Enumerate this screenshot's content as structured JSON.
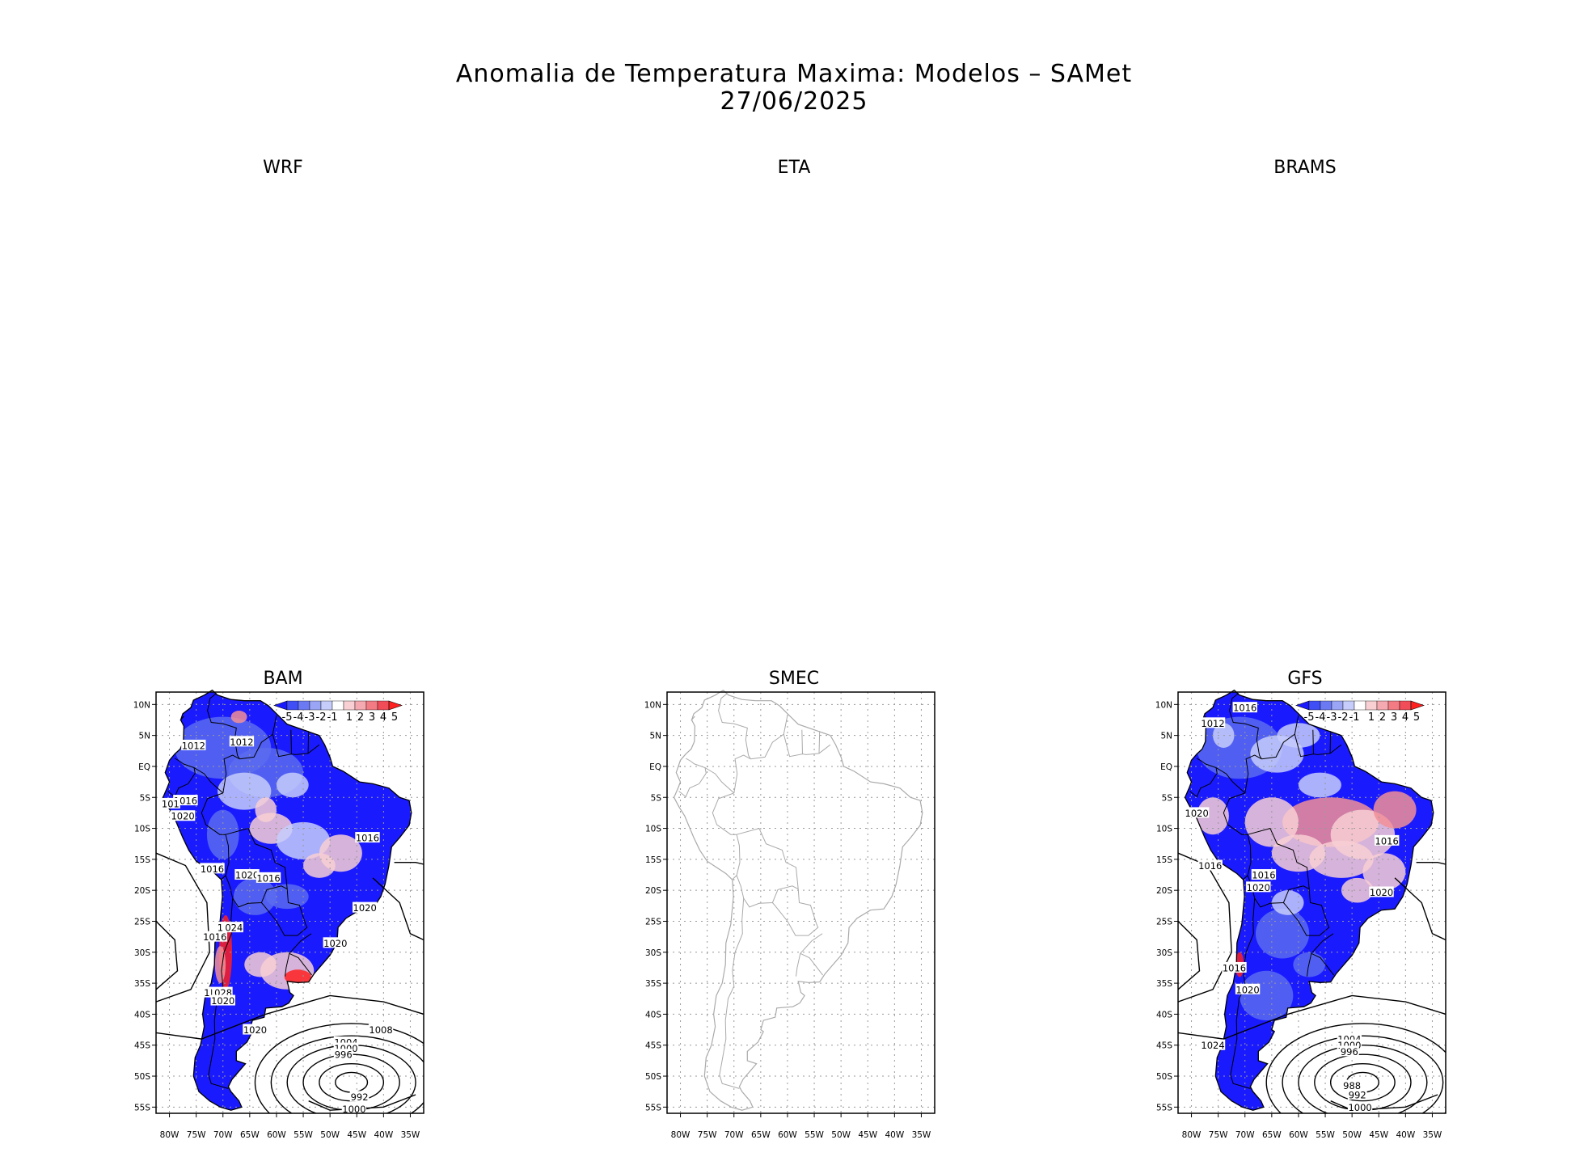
{
  "header": {
    "title": "Anomalia de Temperatura Maxima: Modelos – SAMet",
    "date": "27/06/2025"
  },
  "panels": [
    {
      "name": "WRF",
      "has_map": false
    },
    {
      "name": "ETA",
      "has_map": false
    },
    {
      "name": "BRAMS",
      "has_map": false
    },
    {
      "name": "BAM",
      "has_map": true
    },
    {
      "name": "SMEC",
      "has_map": true
    },
    {
      "name": "GFS",
      "has_map": true
    }
  ],
  "colors": {
    "land_outline": "#000000",
    "smec_outline": "#aaaaaa",
    "cold_strong": "#1a1aff",
    "cold_mid": "#5b6cf0",
    "cold_weak": "#c6cdfa",
    "warm_weak": "#f8cfd3",
    "warm_mid": "#f38f96",
    "warm_strong": "#ff2020"
  },
  "chart_data": [
    {
      "type": "heatmap",
      "panel": "BAM",
      "x_ticks": [
        "80W",
        "75W",
        "70W",
        "65W",
        "60W",
        "55W",
        "50W",
        "45W",
        "40W",
        "35W"
      ],
      "y_ticks": [
        "10N",
        "5N",
        "EQ",
        "5S",
        "10S",
        "15S",
        "20S",
        "25S",
        "30S",
        "35S",
        "40S",
        "45S",
        "50S",
        "55S"
      ],
      "xlim": [
        -82.5,
        -32.5
      ],
      "ylim": [
        -56,
        12
      ],
      "colorbar": {
        "labels": [
          "-5",
          "-4",
          "-3",
          "-2",
          "-1",
          "1",
          "2",
          "3",
          "4",
          "5"
        ]
      },
      "contour_labels": [
        {
          "text": "1012",
          "lon": -75.5,
          "lat": 3.4
        },
        {
          "text": "1012",
          "lon": -66.5,
          "lat": 4.0
        },
        {
          "text": "1016",
          "lon": -77.0,
          "lat": -5.5
        },
        {
          "text": "101",
          "lon": -79.8,
          "lat": -6.0
        },
        {
          "text": "1020",
          "lon": -77.5,
          "lat": -8.0
        },
        {
          "text": "1016",
          "lon": -43.0,
          "lat": -11.5
        },
        {
          "text": "1016",
          "lon": -72.0,
          "lat": -16.5
        },
        {
          "text": "1020",
          "lon": -65.5,
          "lat": -17.5
        },
        {
          "text": "1016",
          "lon": -61.5,
          "lat": -18.0
        },
        {
          "text": "1020",
          "lon": -43.5,
          "lat": -22.8
        },
        {
          "text": "1024",
          "lon": -68.5,
          "lat": -26.0
        },
        {
          "text": "1",
          "lon": -70.5,
          "lat": -26.0
        },
        {
          "text": "1016",
          "lon": -71.5,
          "lat": -27.5
        },
        {
          "text": "1020",
          "lon": -49.0,
          "lat": -28.5
        },
        {
          "text": "1028",
          "lon": -70.5,
          "lat": -36.5
        },
        {
          "text": "1",
          "lon": -73.0,
          "lat": -36.5
        },
        {
          "text": "1020",
          "lon": -70.0,
          "lat": -37.8
        },
        {
          "text": "1020",
          "lon": -64.0,
          "lat": -42.5
        },
        {
          "text": "1008",
          "lon": -40.5,
          "lat": -42.5
        },
        {
          "text": "1004",
          "lon": -47.0,
          "lat": -44.5
        },
        {
          "text": "1000",
          "lon": -47.0,
          "lat": -45.5
        },
        {
          "text": "996",
          "lon": -47.5,
          "lat": -46.5
        },
        {
          "text": "992",
          "lon": -44.5,
          "lat": -53.3
        },
        {
          "text": "1000",
          "lon": -45.5,
          "lat": -55.3
        }
      ]
    },
    {
      "type": "heatmap",
      "panel": "SMEC",
      "x_ticks": [
        "80W",
        "75W",
        "70W",
        "65W",
        "60W",
        "55W",
        "50W",
        "45W",
        "40W",
        "35W"
      ],
      "y_ticks": [
        "10N",
        "5N",
        "EQ",
        "5S",
        "10S",
        "15S",
        "20S",
        "25S",
        "30S",
        "35S",
        "40S",
        "45S",
        "50S",
        "55S"
      ],
      "xlim": [
        -82.5,
        -32.5
      ],
      "ylim": [
        -56,
        12
      ]
    },
    {
      "type": "heatmap",
      "panel": "GFS",
      "x_ticks": [
        "80W",
        "75W",
        "70W",
        "65W",
        "60W",
        "55W",
        "50W",
        "45W",
        "40W",
        "35W"
      ],
      "y_ticks": [
        "10N",
        "5N",
        "EQ",
        "5S",
        "10S",
        "15S",
        "20S",
        "25S",
        "30S",
        "35S",
        "40S",
        "45S",
        "50S",
        "55S"
      ],
      "xlim": [
        -82.5,
        -32.5
      ],
      "ylim": [
        -56,
        12
      ],
      "colorbar": {
        "labels": [
          "-5",
          "-4",
          "-3",
          "-2",
          "-1",
          "1",
          "2",
          "3",
          "4",
          "5"
        ]
      },
      "contour_labels": [
        {
          "text": "1016",
          "lon": -70.0,
          "lat": 9.5
        },
        {
          "text": "1012",
          "lon": -76.0,
          "lat": 7.0
        },
        {
          "text": "1020",
          "lon": -79.0,
          "lat": -7.5
        },
        {
          "text": "1016",
          "lon": -43.5,
          "lat": -12.0
        },
        {
          "text": "1016",
          "lon": -76.5,
          "lat": -16.0
        },
        {
          "text": "1016",
          "lon": -66.5,
          "lat": -17.5
        },
        {
          "text": "1020",
          "lon": -67.5,
          "lat": -19.5
        },
        {
          "text": "1020",
          "lon": -44.5,
          "lat": -20.3
        },
        {
          "text": "1016",
          "lon": -72.0,
          "lat": -32.5
        },
        {
          "text": "1020",
          "lon": -69.5,
          "lat": -36.0
        },
        {
          "text": "1024",
          "lon": -76.0,
          "lat": -45.0
        },
        {
          "text": "1004",
          "lon": -50.5,
          "lat": -44.0
        },
        {
          "text": "1000",
          "lon": -50.5,
          "lat": -45.0
        },
        {
          "text": "996",
          "lon": -50.5,
          "lat": -46.0
        },
        {
          "text": "988",
          "lon": -50.0,
          "lat": -51.5
        },
        {
          "text": "992",
          "lon": -49.0,
          "lat": -53.0
        },
        {
          "text": "1000",
          "lon": -48.5,
          "lat": -55.0
        }
      ]
    }
  ]
}
